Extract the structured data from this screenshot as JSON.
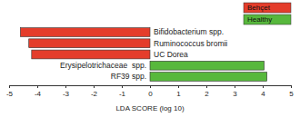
{
  "chart_data": {
    "type": "bar",
    "orientation": "horizontal",
    "x_label": "LDA SCORE (log 10)",
    "categories": [
      "Bifidobacterium spp.",
      "Ruminococcus bromii",
      "UC Dorea",
      "Erysipelotrichaceae  spp.",
      "RF39 spp."
    ],
    "series": [
      {
        "name": "Behçet",
        "color": "#e43d2b",
        "values": [
          -4.6,
          -4.3,
          -4.2,
          null,
          null
        ]
      },
      {
        "name": "Healthy",
        "color": "#57b83c",
        "values": [
          null,
          null,
          null,
          4.05,
          4.15
        ]
      }
    ],
    "xlim": [
      -5,
      5
    ],
    "xticks": [
      -5,
      -4,
      -3,
      -2,
      -1,
      0,
      1,
      2,
      3,
      4,
      5
    ],
    "grid": false,
    "legend": "upper right"
  }
}
